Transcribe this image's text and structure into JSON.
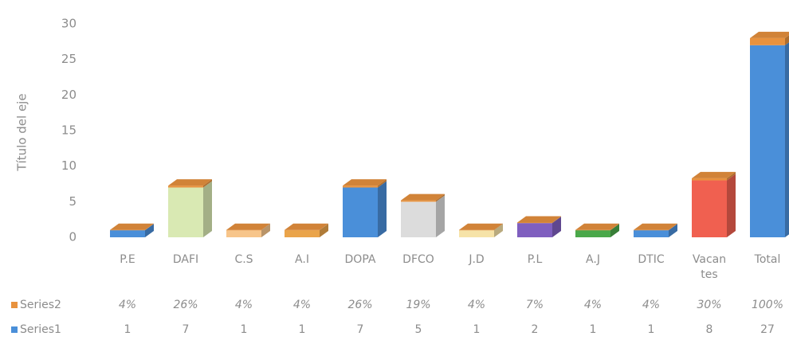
{
  "chart_data": {
    "type": "bar3d_stacked",
    "y_axis_label": "Título del eje",
    "categories": [
      "P.E",
      "DAFI",
      "C.S",
      "A.I",
      "DOPA",
      "DFCO",
      "J.D",
      "P.L",
      "A.J",
      "DTIC",
      "Vacantes",
      "Total"
    ],
    "series": [
      {
        "name": "Series1",
        "color": "#4a8fd9",
        "point_colors": [
          "#4a8fd9",
          "#d9e9b3",
          "#f7c58a",
          "#eaa44a",
          "#4a8fd9",
          "#dcdcdc",
          "#f6e3a8",
          "#7f5fbf",
          "#4aa84a",
          "#4a8fd9",
          "#f06050",
          "#4a8fd9"
        ],
        "values": [
          1,
          7,
          1,
          1,
          7,
          5,
          1,
          2,
          1,
          1,
          8,
          27
        ]
      },
      {
        "name": "Series2",
        "color": "#e8923e",
        "values": [
          0.04,
          0.26,
          0.04,
          0.04,
          0.26,
          0.19,
          0.04,
          0.07,
          0.04,
          0.04,
          0.3,
          1.0
        ],
        "value_labels": [
          "4%",
          "26%",
          "4%",
          "4%",
          "26%",
          "19%",
          "4%",
          "7%",
          "4%",
          "4%",
          "30%",
          "100%"
        ]
      }
    ],
    "ylim": [
      0,
      30
    ],
    "yticks": [
      0,
      5,
      10,
      15,
      20,
      25,
      30
    ],
    "grid": false
  }
}
